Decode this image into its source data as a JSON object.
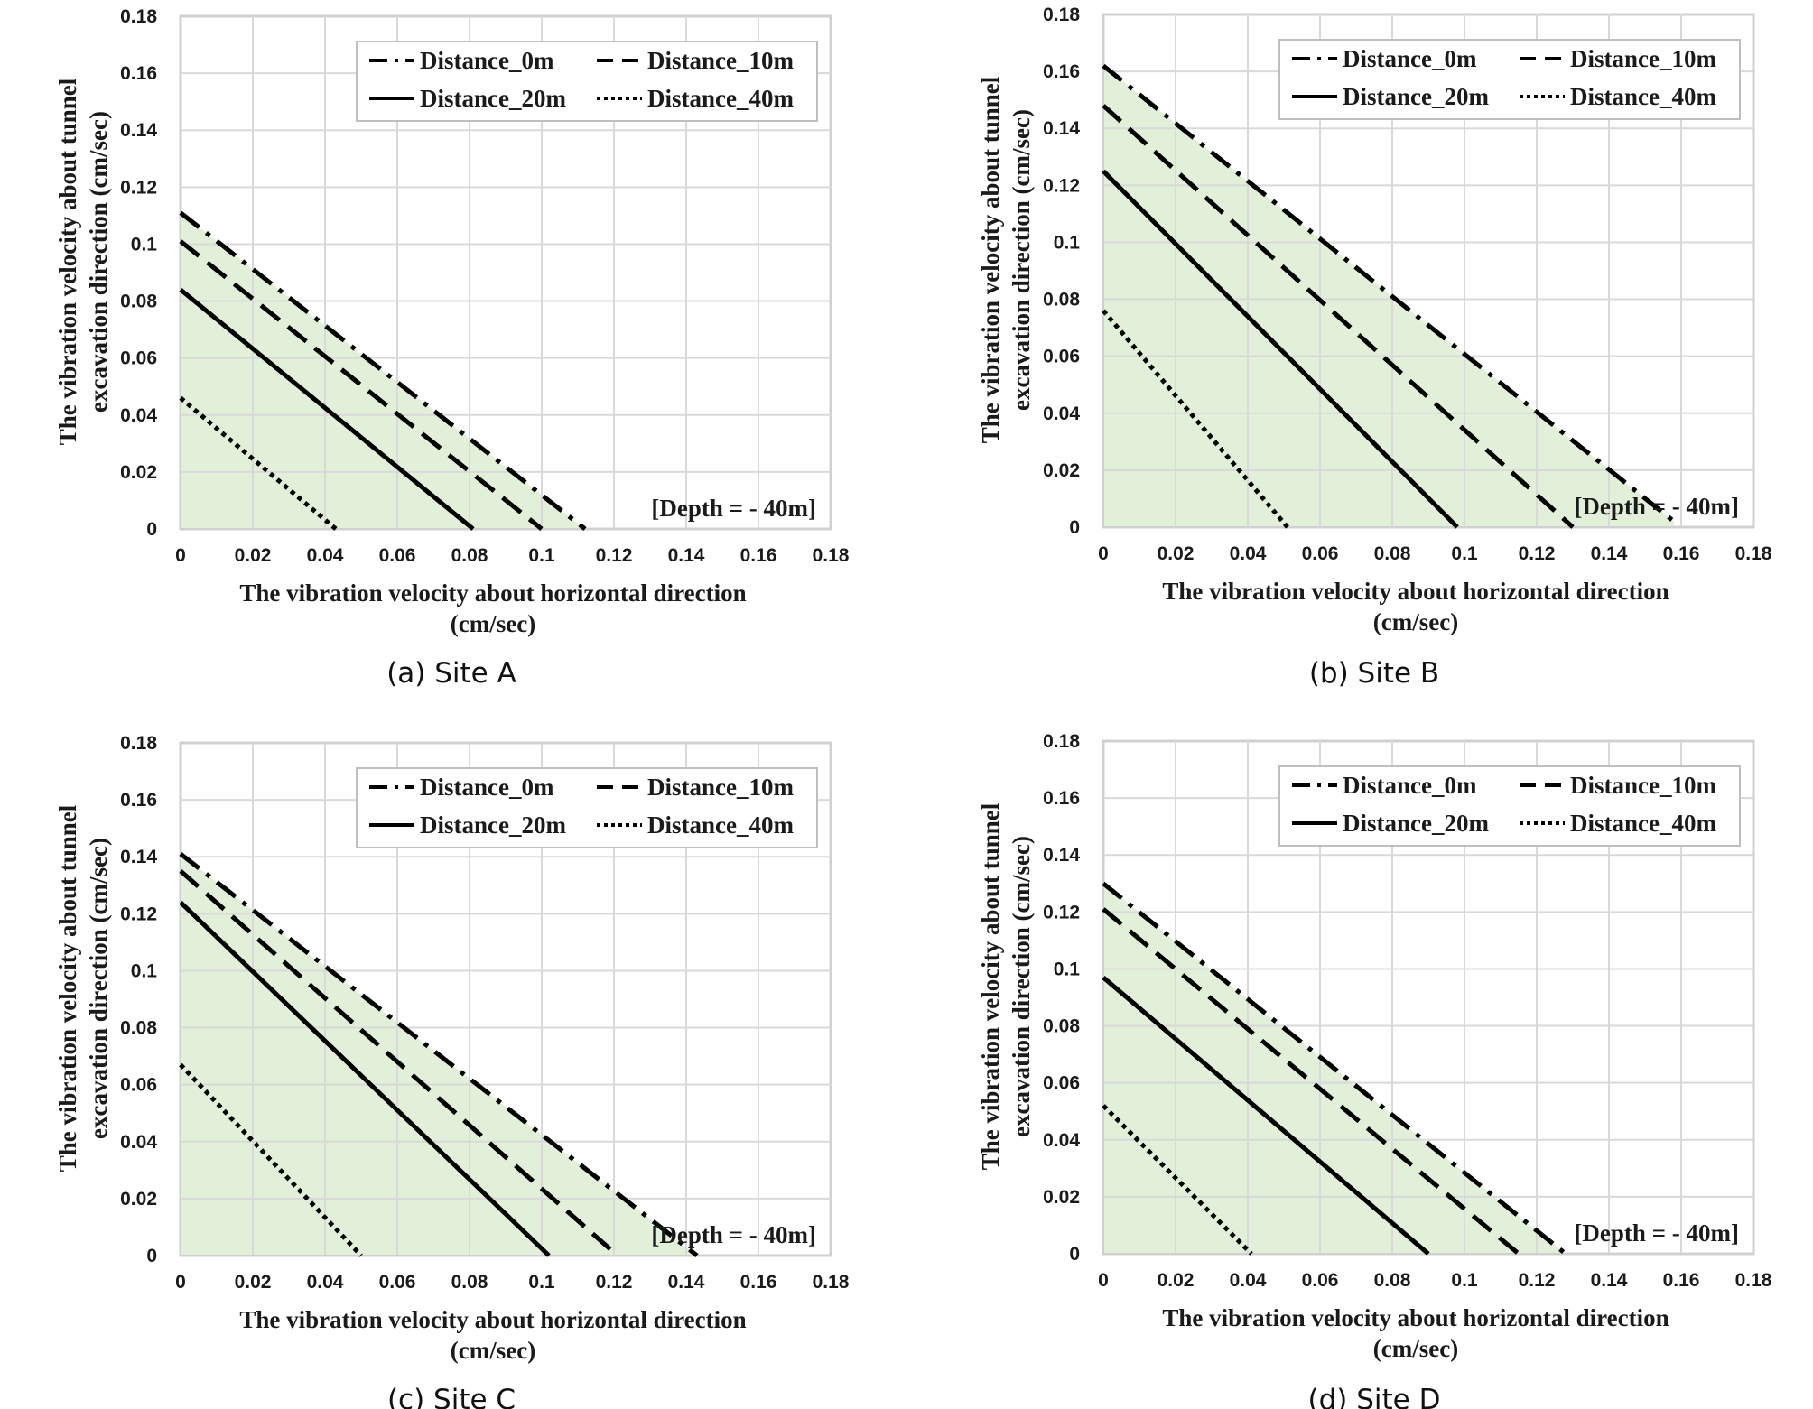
{
  "colors": {
    "fill": "#e2efd9",
    "grid": "#d9d9d9",
    "frame": "#d0d0d0",
    "line": "#000000"
  },
  "legend_placement": "top-right",
  "chart_data": [
    {
      "type": "line",
      "caption": "(a) Site A",
      "annotation": "[Depth = - 40m]",
      "xlabel": [
        "The vibration velocity  about horizontal direction",
        "(cm/sec)"
      ],
      "ylabel": [
        "The vibration velocity  about tunnel",
        "excavation direction (cm/sec)"
      ],
      "xlim": [
        0,
        0.18
      ],
      "ylim": [
        0,
        0.18
      ],
      "xticks": [
        "0",
        "0.02",
        "0.04",
        "0.06",
        "0.08",
        "0.1",
        "0.12",
        "0.14",
        "0.16",
        "0.18"
      ],
      "yticks": [
        "0",
        "0.02",
        "0.04",
        "0.06",
        "0.08",
        "0.1",
        "0.12",
        "0.14",
        "0.16",
        "0.18"
      ],
      "grid": true,
      "series": [
        {
          "name": "Distance_0m",
          "style": "dashdot",
          "x": [
            0,
            0.112
          ],
          "y": [
            0.111,
            0
          ]
        },
        {
          "name": "Distance_10m",
          "style": "dashed",
          "x": [
            0,
            0.1
          ],
          "y": [
            0.101,
            0
          ]
        },
        {
          "name": "Distance_20m",
          "style": "solid",
          "x": [
            0,
            0.081
          ],
          "y": [
            0.084,
            0
          ]
        },
        {
          "name": "Distance_40m",
          "style": "dotted",
          "x": [
            0,
            0.043
          ],
          "y": [
            0.046,
            0
          ]
        }
      ]
    },
    {
      "type": "line",
      "caption": "(b) Site B",
      "annotation": "[Depth = - 40m]",
      "xlabel": [
        "The vibration velocity  about horizontal direction",
        "(cm/sec)"
      ],
      "ylabel": [
        "The vibration velocity  about tunnel",
        "excavation direction (cm/sec)"
      ],
      "xlim": [
        0,
        0.18
      ],
      "ylim": [
        0,
        0.18
      ],
      "xticks": [
        "0",
        "0.02",
        "0.04",
        "0.06",
        "0.08",
        "0.1",
        "0.12",
        "0.14",
        "0.16",
        "0.18"
      ],
      "yticks": [
        "0",
        "0.02",
        "0.04",
        "0.06",
        "0.08",
        "0.1",
        "0.12",
        "0.14",
        "0.16",
        "0.18"
      ],
      "grid": true,
      "series": [
        {
          "name": "Distance_0m",
          "style": "dashdot",
          "x": [
            0,
            0.158
          ],
          "y": [
            0.162,
            0.002
          ]
        },
        {
          "name": "Distance_10m",
          "style": "dashed",
          "x": [
            0,
            0.13
          ],
          "y": [
            0.148,
            0
          ]
        },
        {
          "name": "Distance_20m",
          "style": "solid",
          "x": [
            0,
            0.098
          ],
          "y": [
            0.125,
            0
          ]
        },
        {
          "name": "Distance_40m",
          "style": "dotted",
          "x": [
            0,
            0.051
          ],
          "y": [
            0.076,
            0
          ]
        }
      ]
    },
    {
      "type": "line",
      "caption": "(c) Site C",
      "annotation": "[Depth = - 40m]",
      "xlabel": [
        "The vibration velocity  about horizontal direction",
        "(cm/sec)"
      ],
      "ylabel": [
        "The vibration velocity  about tunnel",
        "excavation direction (cm/sec)"
      ],
      "xlim": [
        0,
        0.18
      ],
      "ylim": [
        0,
        0.18
      ],
      "xticks": [
        "0",
        "0.02",
        "0.04",
        "0.06",
        "0.08",
        "0.1",
        "0.12",
        "0.14",
        "0.16",
        "0.18"
      ],
      "yticks": [
        "0",
        "0.02",
        "0.04",
        "0.06",
        "0.08",
        "0.1",
        "0.12",
        "0.14",
        "0.16",
        "0.18"
      ],
      "grid": true,
      "series": [
        {
          "name": "Distance_0m",
          "style": "dashdot",
          "x": [
            0,
            0.143
          ],
          "y": [
            0.141,
            0
          ]
        },
        {
          "name": "Distance_10m",
          "style": "dashed",
          "x": [
            0,
            0.121
          ],
          "y": [
            0.135,
            0
          ]
        },
        {
          "name": "Distance_20m",
          "style": "solid",
          "x": [
            0,
            0.102
          ],
          "y": [
            0.124,
            0
          ]
        },
        {
          "name": "Distance_40m",
          "style": "dotted",
          "x": [
            0,
            0.05
          ],
          "y": [
            0.067,
            0
          ]
        }
      ]
    },
    {
      "type": "line",
      "caption": "(d) Site D",
      "annotation": "[Depth = - 40m]",
      "xlabel": [
        "The vibration velocity  about horizontal direction",
        "(cm/sec)"
      ],
      "ylabel": [
        "The vibration velocity  about tunnel",
        "excavation direction (cm/sec)"
      ],
      "xlim": [
        0,
        0.18
      ],
      "ylim": [
        0,
        0.18
      ],
      "xticks": [
        "0",
        "0.02",
        "0.04",
        "0.06",
        "0.08",
        "0.1",
        "0.12",
        "0.14",
        "0.16",
        "0.18"
      ],
      "yticks": [
        "0",
        "0.02",
        "0.04",
        "0.06",
        "0.08",
        "0.1",
        "0.12",
        "0.14",
        "0.16",
        "0.18"
      ],
      "grid": true,
      "series": [
        {
          "name": "Distance_0m",
          "style": "dashdot",
          "x": [
            0,
            0.128
          ],
          "y": [
            0.13,
            0
          ]
        },
        {
          "name": "Distance_10m",
          "style": "dashed",
          "x": [
            0,
            0.115
          ],
          "y": [
            0.121,
            0
          ]
        },
        {
          "name": "Distance_20m",
          "style": "solid",
          "x": [
            0,
            0.09
          ],
          "y": [
            0.097,
            0
          ]
        },
        {
          "name": "Distance_40m",
          "style": "dotted",
          "x": [
            0,
            0.041
          ],
          "y": [
            0.052,
            0
          ]
        }
      ]
    }
  ]
}
